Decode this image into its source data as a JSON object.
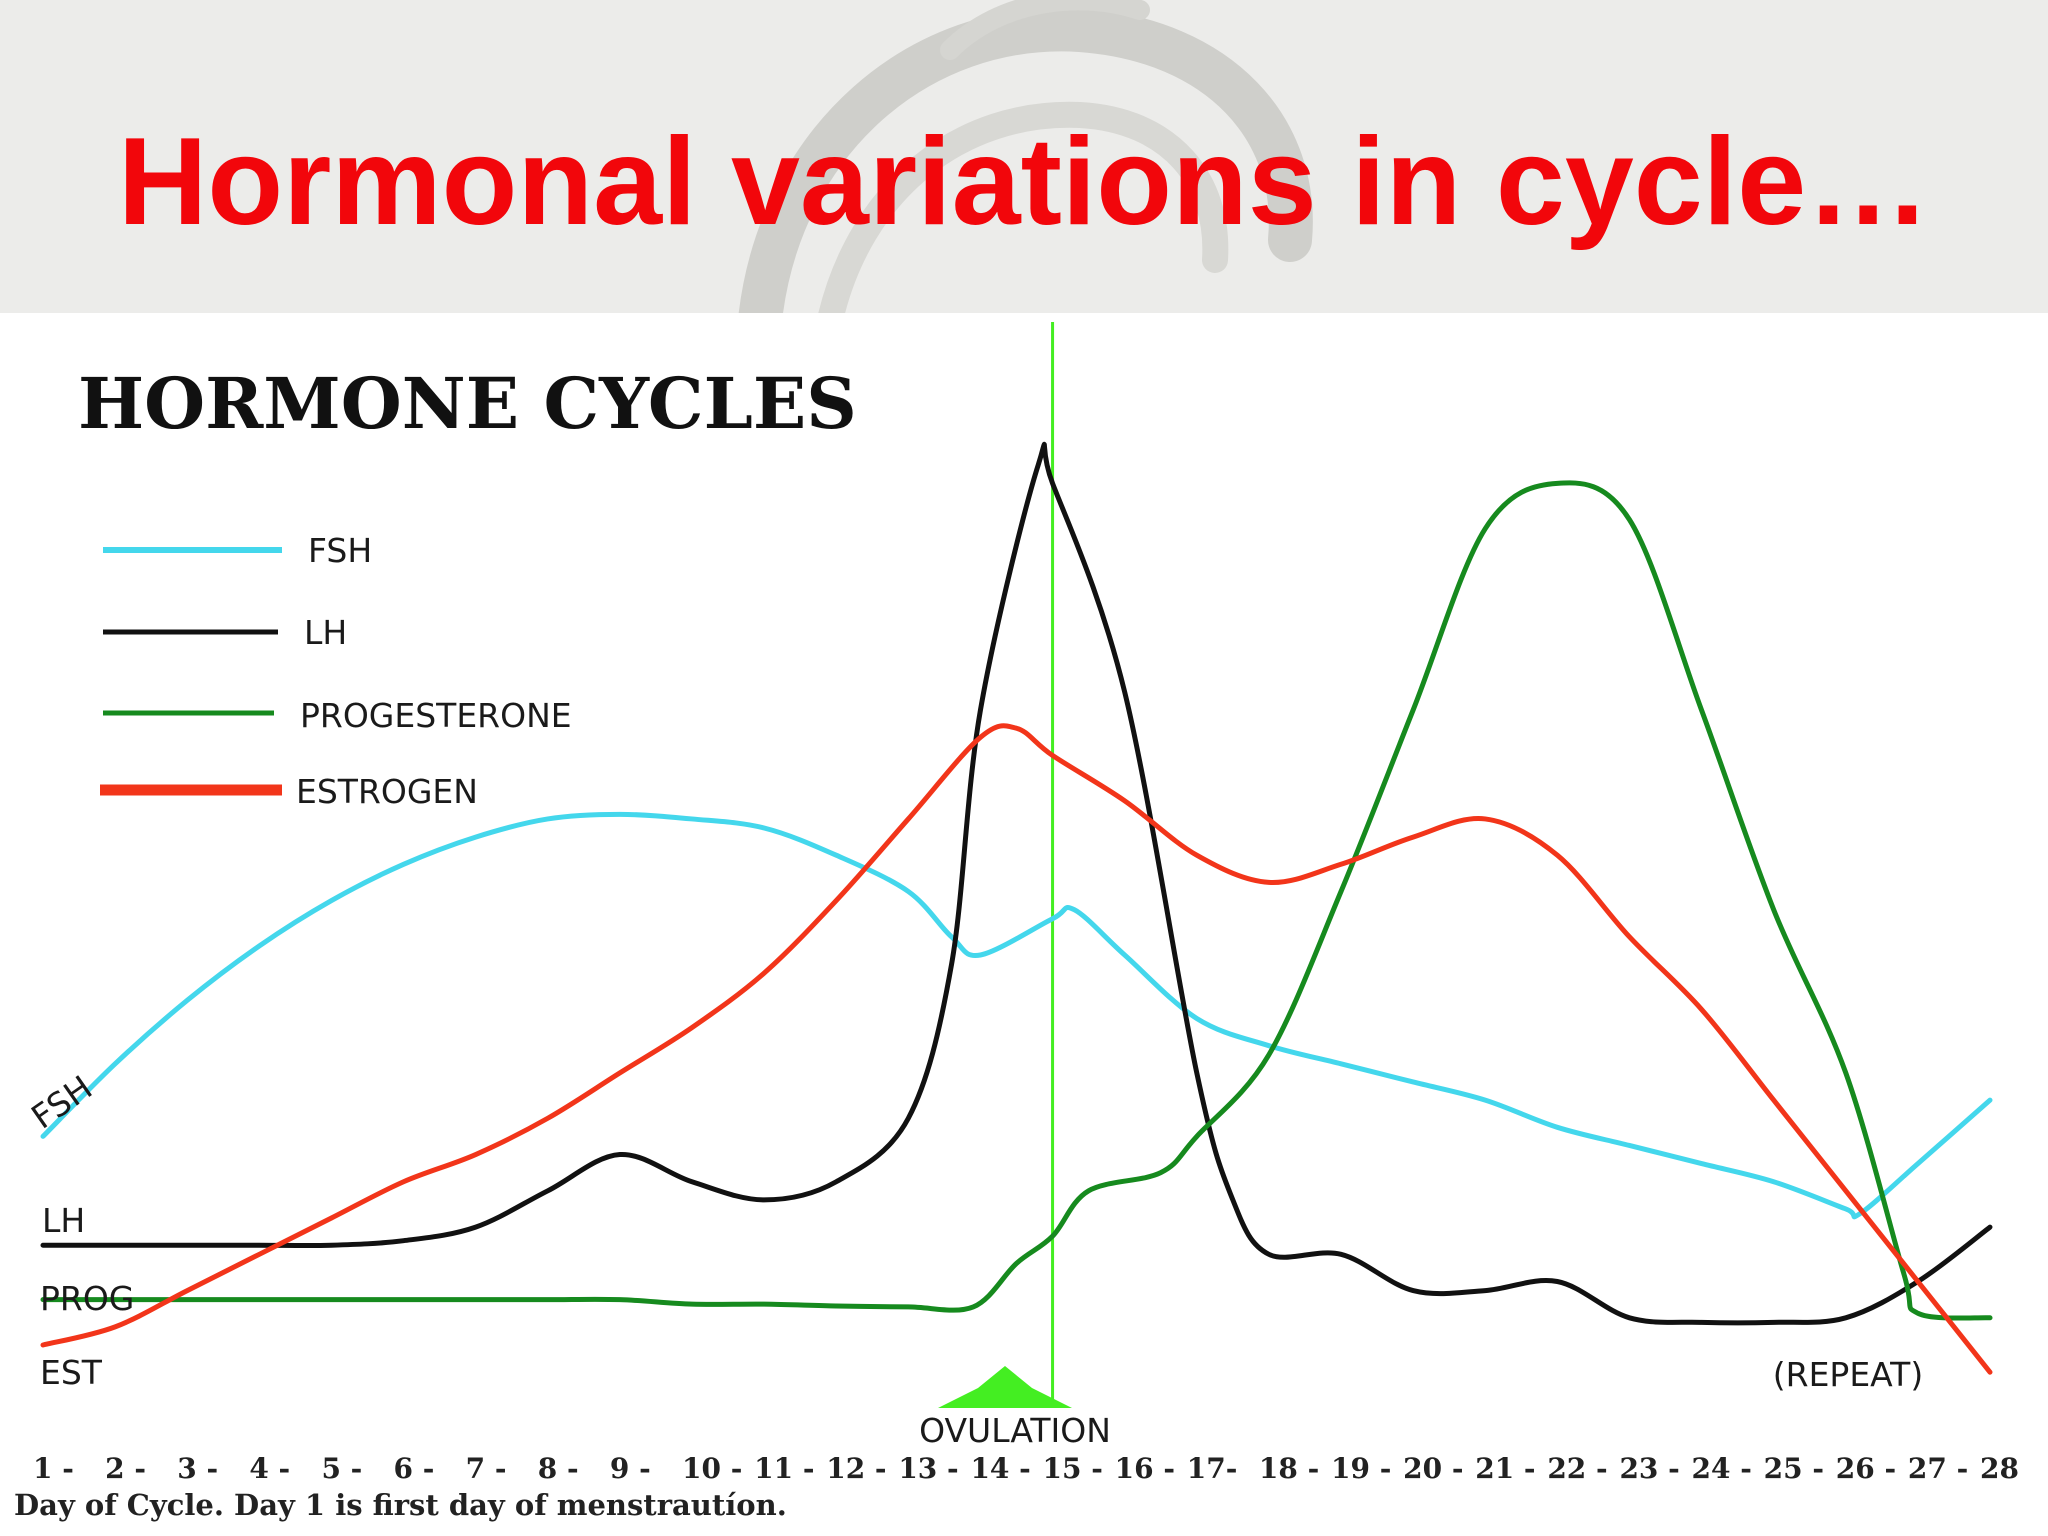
{
  "slide": {
    "title": "Hormonal variations in cycle…"
  },
  "colors": {
    "title": "#f2060b",
    "header_bg": "#ececea",
    "ovulation_marker": "#44ee22"
  },
  "chart_data": {
    "type": "line",
    "title": "HORMONE CYCLES",
    "xlabel": "Day of Cycle. Day 1 is first day of menstrautíon.",
    "x_range": [
      1,
      28
    ],
    "tick_labels": [
      "1 -",
      "2 -",
      "3 -",
      "4 -",
      "5 -",
      "6 -",
      "7 -",
      "8 -",
      "9 -",
      "10 -",
      "11 -",
      "12 -",
      "13 -",
      "14 -",
      "15 -",
      "16 -",
      "17-",
      "18 -",
      "19 -",
      "20 -",
      "21 -",
      "22 -",
      "23 -",
      "24 -",
      "25 -",
      "26 -",
      "27 -",
      "28"
    ],
    "y_range": [
      0,
      100
    ],
    "grid": false,
    "legend_position": "top-left",
    "legend": [
      {
        "label": "FSH",
        "color": "#44d7ec"
      },
      {
        "label": "LH",
        "color": "#111111"
      },
      {
        "label": "PROGESTERONE",
        "color": "#168a1e"
      },
      {
        "label": "ESTROGEN",
        "color": "#f2351a"
      }
    ],
    "axis_labels": [
      "FSH",
      "LH",
      "PROG",
      "EST"
    ],
    "annotations": {
      "ovulation": "OVULATION",
      "ovulation_day": 15,
      "repeat": "(REPEAT)"
    },
    "series": [
      {
        "name": "FSH",
        "color": "#44d7ec",
        "width": 5,
        "points": [
          [
            1,
            23
          ],
          [
            2,
            31
          ],
          [
            3,
            38
          ],
          [
            4,
            44
          ],
          [
            5,
            49
          ],
          [
            6,
            53
          ],
          [
            7,
            56
          ],
          [
            8,
            58
          ],
          [
            9,
            58.5
          ],
          [
            10,
            58
          ],
          [
            11,
            57
          ],
          [
            12,
            54
          ],
          [
            13,
            50
          ],
          [
            13.6,
            45
          ],
          [
            14,
            43
          ],
          [
            15,
            47
          ],
          [
            15.3,
            48
          ],
          [
            16,
            43
          ],
          [
            17,
            36
          ],
          [
            18,
            33
          ],
          [
            19,
            31
          ],
          [
            20,
            29
          ],
          [
            21,
            27
          ],
          [
            22,
            24
          ],
          [
            23,
            22
          ],
          [
            24,
            20
          ],
          [
            25,
            18
          ],
          [
            26,
            15
          ],
          [
            26.2,
            14.5
          ],
          [
            27,
            20
          ],
          [
            28,
            27
          ]
        ]
      },
      {
        "name": "LH",
        "color": "#111111",
        "width": 5,
        "points": [
          [
            1,
            11
          ],
          [
            2,
            11
          ],
          [
            3,
            11
          ],
          [
            4,
            11
          ],
          [
            5,
            11
          ],
          [
            6,
            11.5
          ],
          [
            7,
            13
          ],
          [
            8,
            17
          ],
          [
            9,
            21
          ],
          [
            10,
            18
          ],
          [
            11,
            16
          ],
          [
            12,
            18
          ],
          [
            13,
            25
          ],
          [
            13.6,
            42
          ],
          [
            14,
            70
          ],
          [
            14.8,
            97
          ],
          [
            15,
            95
          ],
          [
            16,
            72
          ],
          [
            17,
            30
          ],
          [
            17.5,
            16
          ],
          [
            18,
            10
          ],
          [
            19,
            10
          ],
          [
            20,
            6
          ],
          [
            21,
            6
          ],
          [
            22,
            7
          ],
          [
            23,
            3
          ],
          [
            24,
            2.5
          ],
          [
            25,
            2.5
          ],
          [
            26,
            3
          ],
          [
            27,
            7
          ],
          [
            28,
            13
          ]
        ]
      },
      {
        "name": "PROGESTERONE",
        "color": "#168a1e",
        "width": 5,
        "points": [
          [
            1,
            5
          ],
          [
            2,
            5
          ],
          [
            3,
            5
          ],
          [
            4,
            5
          ],
          [
            5,
            5
          ],
          [
            6,
            5
          ],
          [
            7,
            5
          ],
          [
            8,
            5
          ],
          [
            9,
            5
          ],
          [
            10,
            4.5
          ],
          [
            11,
            4.5
          ],
          [
            12,
            4.3
          ],
          [
            13,
            4.2
          ],
          [
            13.9,
            4.2
          ],
          [
            14.5,
            9
          ],
          [
            15,
            12
          ],
          [
            15.5,
            17
          ],
          [
            16.5,
            19
          ],
          [
            17,
            23
          ],
          [
            18,
            32
          ],
          [
            19,
            50
          ],
          [
            20,
            70
          ],
          [
            21,
            90
          ],
          [
            22,
            95
          ],
          [
            23,
            91
          ],
          [
            24,
            70
          ],
          [
            25,
            48
          ],
          [
            26,
            30
          ],
          [
            26.8,
            8
          ],
          [
            27,
            3.5
          ],
          [
            28,
            3
          ]
        ]
      },
      {
        "name": "ESTROGEN",
        "color": "#f2351a",
        "width": 5,
        "points": [
          [
            1,
            0
          ],
          [
            2,
            2
          ],
          [
            3,
            6
          ],
          [
            4,
            10
          ],
          [
            5,
            14
          ],
          [
            6,
            18
          ],
          [
            7,
            21
          ],
          [
            8,
            25
          ],
          [
            9,
            30
          ],
          [
            10,
            35
          ],
          [
            11,
            41
          ],
          [
            12,
            49
          ],
          [
            13,
            58
          ],
          [
            14,
            67
          ],
          [
            14.5,
            68
          ],
          [
            15,
            65
          ],
          [
            16,
            60
          ],
          [
            17,
            54
          ],
          [
            18,
            51
          ],
          [
            19,
            53
          ],
          [
            20,
            56
          ],
          [
            21,
            58
          ],
          [
            22,
            54
          ],
          [
            23,
            45
          ],
          [
            24,
            37
          ],
          [
            25,
            27
          ],
          [
            26,
            17
          ],
          [
            27,
            7
          ],
          [
            28,
            -3
          ]
        ]
      }
    ]
  }
}
